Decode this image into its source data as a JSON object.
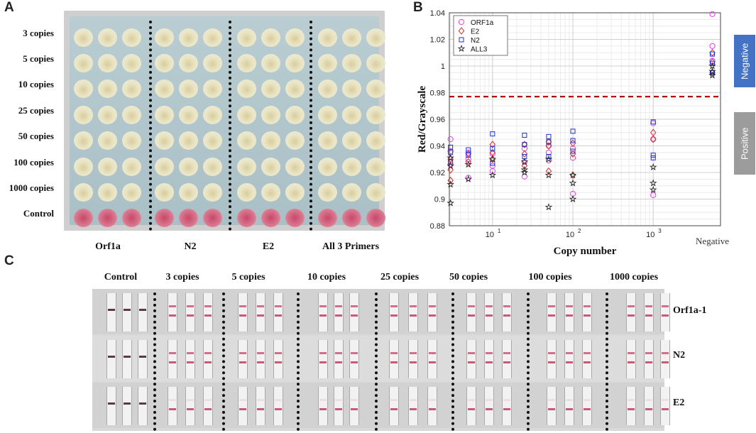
{
  "panel_a": {
    "letter": "A",
    "row_labels": [
      "3 copies",
      "5 copies",
      "10 copies",
      "25 copies",
      "50 copies",
      "100 copies",
      "1000 copies",
      "Control"
    ],
    "col_labels": [
      "Orf1a",
      "N2",
      "E2",
      "All 3 Primers"
    ],
    "colors": {
      "negative_well": "#f0eedd",
      "positive_well": "#e9e4c4",
      "control_well": "#d7788f"
    }
  },
  "panel_b": {
    "letter": "B",
    "band_negative": "Negative",
    "band_positive": "Positive",
    "band_colors": {
      "negative": "#4472c4",
      "positive": "#9c9c9c"
    },
    "chart_data": {
      "type": "scatter",
      "title": "",
      "xlabel": "Copy number",
      "ylabel": "Red/Grayscale",
      "xscale": "log",
      "ylim": [
        0.88,
        1.04
      ],
      "yticks": [
        "0.88",
        "0.9",
        "0.92",
        "0.94",
        "0.96",
        "0.98",
        "1",
        "1.02",
        "1.04"
      ],
      "xtick_labels": [
        {
          "base": "10",
          "exp": "1"
        },
        {
          "base": "10",
          "exp": "2"
        },
        {
          "base": "10",
          "exp": "3"
        }
      ],
      "extra_x_label": "Negative",
      "threshold": 0.977,
      "threshold_color": "#c00000",
      "legend_position": "top-left",
      "series": [
        {
          "name": "ORF1a",
          "marker": "circle",
          "color": "#e040e0",
          "points": [
            [
              3,
              0.945
            ],
            [
              3,
              0.936
            ],
            [
              3,
              0.926
            ],
            [
              5,
              0.935
            ],
            [
              5,
              0.93
            ],
            [
              5,
              0.916
            ],
            [
              10,
              0.934
            ],
            [
              10,
              0.925
            ],
            [
              10,
              0.921
            ],
            [
              25,
              0.938
            ],
            [
              25,
              0.928
            ],
            [
              25,
              0.917
            ],
            [
              50,
              0.94
            ],
            [
              50,
              0.935
            ],
            [
              50,
              0.929
            ],
            [
              100,
              0.938
            ],
            [
              100,
              0.931
            ],
            [
              100,
              0.904
            ],
            [
              1000,
              0.957
            ],
            [
              1000,
              0.945
            ],
            [
              1000,
              0.903
            ],
            [
              "neg",
              1.039
            ],
            [
              "neg",
              1.015
            ],
            [
              "neg",
              1.004
            ]
          ]
        },
        {
          "name": "E2",
          "marker": "diamond",
          "color": "#e02020",
          "points": [
            [
              3,
              0.93
            ],
            [
              3,
              0.922
            ],
            [
              3,
              0.914
            ],
            [
              5,
              0.934
            ],
            [
              5,
              0.928
            ],
            [
              10,
              0.941
            ],
            [
              10,
              0.935
            ],
            [
              10,
              0.93
            ],
            [
              25,
              0.941
            ],
            [
              25,
              0.934
            ],
            [
              25,
              0.925
            ],
            [
              50,
              0.943
            ],
            [
              50,
              0.94
            ],
            [
              50,
              0.921
            ],
            [
              100,
              0.942
            ],
            [
              100,
              0.934
            ],
            [
              100,
              0.918
            ],
            [
              1000,
              0.95
            ],
            [
              1000,
              0.945
            ],
            [
              "neg",
              1.01
            ],
            [
              "neg",
              1.003
            ],
            [
              "neg",
              0.995
            ]
          ]
        },
        {
          "name": "N2",
          "marker": "square",
          "color": "#2030d0",
          "points": [
            [
              3,
              0.939
            ],
            [
              3,
              0.935
            ],
            [
              3,
              0.928
            ],
            [
              5,
              0.937
            ],
            [
              5,
              0.933
            ],
            [
              10,
              0.949
            ],
            [
              10,
              0.938
            ],
            [
              10,
              0.927
            ],
            [
              25,
              0.948
            ],
            [
              25,
              0.941
            ],
            [
              25,
              0.932
            ],
            [
              50,
              0.947
            ],
            [
              50,
              0.943
            ],
            [
              50,
              0.932
            ],
            [
              100,
              0.951
            ],
            [
              100,
              0.944
            ],
            [
              100,
              0.936
            ],
            [
              1000,
              0.958
            ],
            [
              1000,
              0.933
            ],
            [
              1000,
              0.931
            ],
            [
              "neg",
              1.009
            ],
            [
              "neg",
              1.002
            ],
            [
              "neg",
              0.995
            ]
          ]
        },
        {
          "name": "ALL3",
          "marker": "star",
          "color": "#222222",
          "points": [
            [
              3,
              0.931
            ],
            [
              3,
              0.925
            ],
            [
              3,
              0.911
            ],
            [
              3,
              0.897
            ],
            [
              5,
              0.926
            ],
            [
              5,
              0.915
            ],
            [
              10,
              0.93
            ],
            [
              10,
              0.918
            ],
            [
              25,
              0.928
            ],
            [
              25,
              0.922
            ],
            [
              25,
              0.92
            ],
            [
              50,
              0.93
            ],
            [
              50,
              0.918
            ],
            [
              50,
              0.894
            ],
            [
              100,
              0.918
            ],
            [
              100,
              0.912
            ],
            [
              100,
              0.9
            ],
            [
              1000,
              0.924
            ],
            [
              1000,
              0.912
            ],
            [
              1000,
              0.907
            ],
            [
              "neg",
              1.0
            ],
            [
              "neg",
              0.996
            ],
            [
              "neg",
              0.993
            ]
          ]
        }
      ]
    }
  },
  "panel_c": {
    "letter": "C",
    "column_headers": [
      "Control",
      "3 copies",
      "5 copies",
      "10 copies",
      "25 copies",
      "50 copies",
      "100 copies",
      "1000 copies"
    ],
    "row_labels": [
      "Orf1a-1",
      "N2",
      "E2"
    ],
    "colors": {
      "control_line": "#5a3a48",
      "test_line": "#c75a7a",
      "faint_line": "#d9a3b4"
    }
  }
}
